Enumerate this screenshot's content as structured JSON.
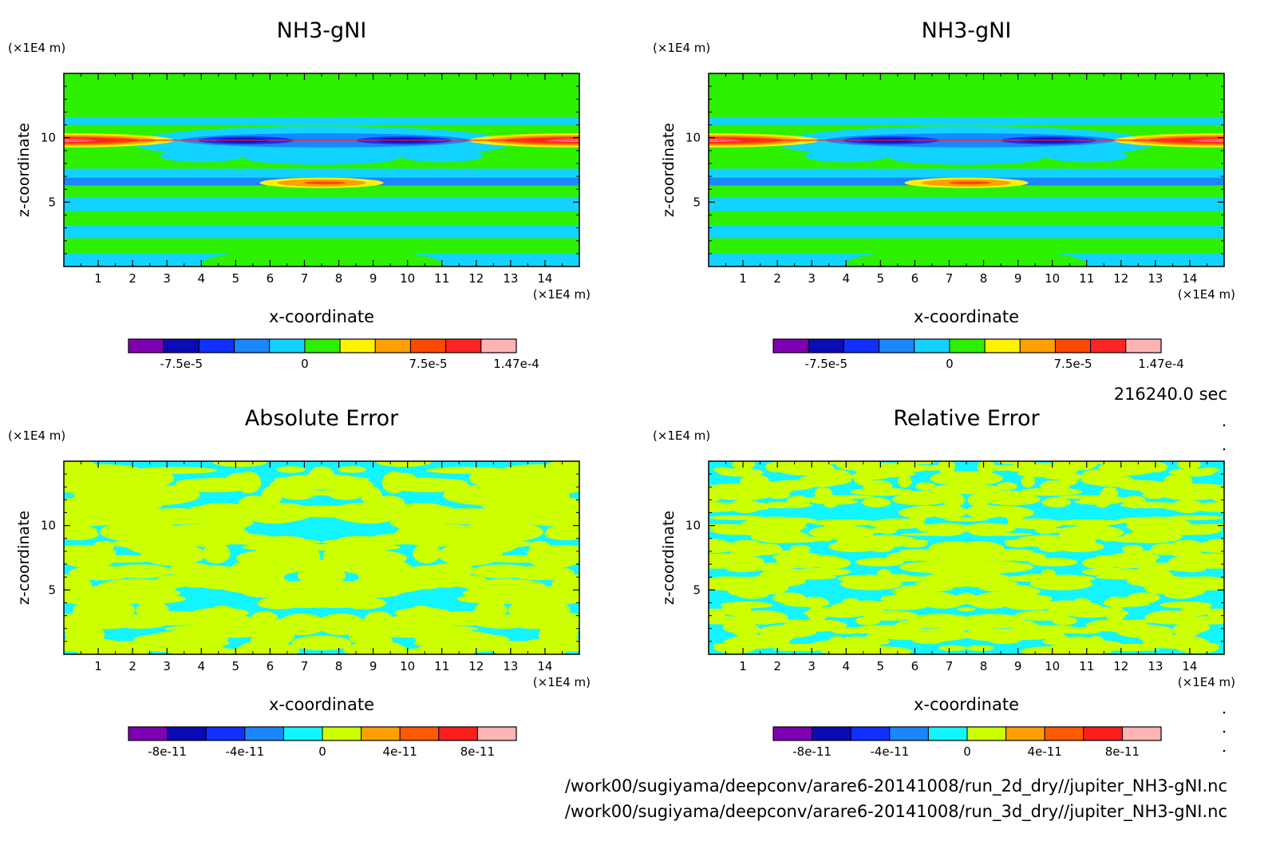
{
  "panels": [
    {
      "title": "NH3-gNI",
      "z_unit": "(×1E4 m)",
      "x_unit": "(×1E4 m)",
      "xlabel": "x-coordinate",
      "ylabel": "z-coordinate",
      "x_ticks": [
        1,
        2,
        3,
        4,
        5,
        6,
        7,
        8,
        9,
        10,
        11,
        12,
        13,
        14
      ],
      "y_ticks": [
        5,
        10
      ],
      "colorbar": {
        "labels": [
          "-7.5e-5",
          "0",
          "7.5e-5",
          "1.47e-4"
        ],
        "colors": [
          "#7f00b2",
          "#0b0bb6",
          "#1030ff",
          "#1a86ff",
          "#12d3ff",
          "#2cf000",
          "#fff200",
          "#ff9f00",
          "#ff4800",
          "#ff2424",
          "#ffb4b4"
        ]
      }
    },
    {
      "title": "NH3-gNI",
      "z_unit": "(×1E4 m)",
      "x_unit": "(×1E4 m)",
      "xlabel": "x-coordinate",
      "ylabel": "z-coordinate",
      "x_ticks": [
        1,
        2,
        3,
        4,
        5,
        6,
        7,
        8,
        9,
        10,
        11,
        12,
        13,
        14
      ],
      "y_ticks": [
        5,
        10
      ],
      "colorbar": {
        "labels": [
          "-7.5e-5",
          "0",
          "7.5e-5",
          "1.47e-4"
        ],
        "colors": [
          "#7f00b2",
          "#0b0bb6",
          "#1030ff",
          "#1a86ff",
          "#12d3ff",
          "#2cf000",
          "#fff200",
          "#ff9f00",
          "#ff4800",
          "#ff2424",
          "#ffb4b4"
        ]
      }
    },
    {
      "title": "Absolute Error",
      "z_unit": "(×1E4 m)",
      "x_unit": "(×1E4 m)",
      "xlabel": "x-coordinate",
      "ylabel": "z-coordinate",
      "x_ticks": [
        1,
        2,
        3,
        4,
        5,
        6,
        7,
        8,
        9,
        10,
        11,
        12,
        13,
        14
      ],
      "y_ticks": [
        5,
        10
      ],
      "colorbar": {
        "labels": [
          "-8e-11",
          "-4e-11",
          "0",
          "4e-11",
          "8e-11"
        ],
        "colors": [
          "#7f00b2",
          "#0b0bb6",
          "#1030ff",
          "#1a86ff",
          "#12f5ff",
          "#ccff00",
          "#ff9f00",
          "#ff5a00",
          "#ff1e1e",
          "#ffb4b4"
        ]
      }
    },
    {
      "title": "Relative Error",
      "z_unit": "(×1E4 m)",
      "x_unit": "(×1E4 m)",
      "xlabel": "x-coordinate",
      "ylabel": "z-coordinate",
      "x_ticks": [
        1,
        2,
        3,
        4,
        5,
        6,
        7,
        8,
        9,
        10,
        11,
        12,
        13,
        14
      ],
      "y_ticks": [
        5,
        10
      ],
      "colorbar": {
        "labels": [
          "-8e-11",
          "-4e-11",
          "0",
          "4e-11",
          "8e-11"
        ],
        "colors": [
          "#7f00b2",
          "#0b0bb6",
          "#1030ff",
          "#1a86ff",
          "#12f5ff",
          "#ccff00",
          "#ff9f00",
          "#ff5a00",
          "#ff1e1e",
          "#ffb4b4"
        ]
      }
    }
  ],
  "time_label": "216240.0 sec",
  "file_paths": [
    "/work00/sugiyama/deepconv/arare6-20141008/run_2d_dry//jupiter_NH3-gNI.nc",
    "/work00/sugiyama/deepconv/arare6-20141008/run_3d_dry//jupiter_NH3-gNI.nc"
  ],
  "chart_data": [
    {
      "type": "heatmap",
      "title": "NH3-gNI",
      "xlabel": "x-coordinate",
      "ylabel": "z-coordinate",
      "xlim": [
        0,
        15
      ],
      "ylim": [
        0,
        15
      ],
      "levels": [
        "-7.5e-5",
        "0",
        "7.5e-5",
        "1.47e-4"
      ],
      "features": [
        {
          "x": [
            0,
            3
          ],
          "z": 9.8,
          "level": "high"
        },
        {
          "x": [
            3.5,
            11.7
          ],
          "z": 9.8,
          "level": "low"
        },
        {
          "x": [
            12.5,
            15
          ],
          "z": 9.8,
          "level": "high"
        },
        {
          "x": [
            6,
            9
          ],
          "z": 6.5,
          "level": "high"
        }
      ]
    },
    {
      "type": "heatmap",
      "title": "NH3-gNI",
      "xlabel": "x-coordinate",
      "ylabel": "z-coordinate",
      "xlim": [
        0,
        15
      ],
      "ylim": [
        0,
        15
      ],
      "levels": [
        "-7.5e-5",
        "0",
        "7.5e-5",
        "1.47e-4"
      ],
      "features": [
        {
          "x": [
            0,
            3
          ],
          "z": 9.8,
          "level": "high"
        },
        {
          "x": [
            3.5,
            11.7
          ],
          "z": 9.8,
          "level": "low"
        },
        {
          "x": [
            12.5,
            15
          ],
          "z": 9.8,
          "level": "high"
        },
        {
          "x": [
            6,
            9
          ],
          "z": 6.5,
          "level": "high"
        }
      ]
    },
    {
      "type": "heatmap",
      "title": "Absolute Error",
      "xlabel": "x-coordinate",
      "ylabel": "z-coordinate",
      "xlim": [
        0,
        15
      ],
      "ylim": [
        0,
        15
      ],
      "levels": [
        "-8e-11",
        "-4e-11",
        "0",
        "4e-11",
        "8e-11"
      ]
    },
    {
      "type": "heatmap",
      "title": "Relative Error",
      "xlabel": "x-coordinate",
      "ylabel": "z-coordinate",
      "xlim": [
        0,
        15
      ],
      "ylim": [
        0,
        15
      ],
      "levels": [
        "-8e-11",
        "-4e-11",
        "0",
        "4e-11",
        "8e-11"
      ]
    }
  ]
}
